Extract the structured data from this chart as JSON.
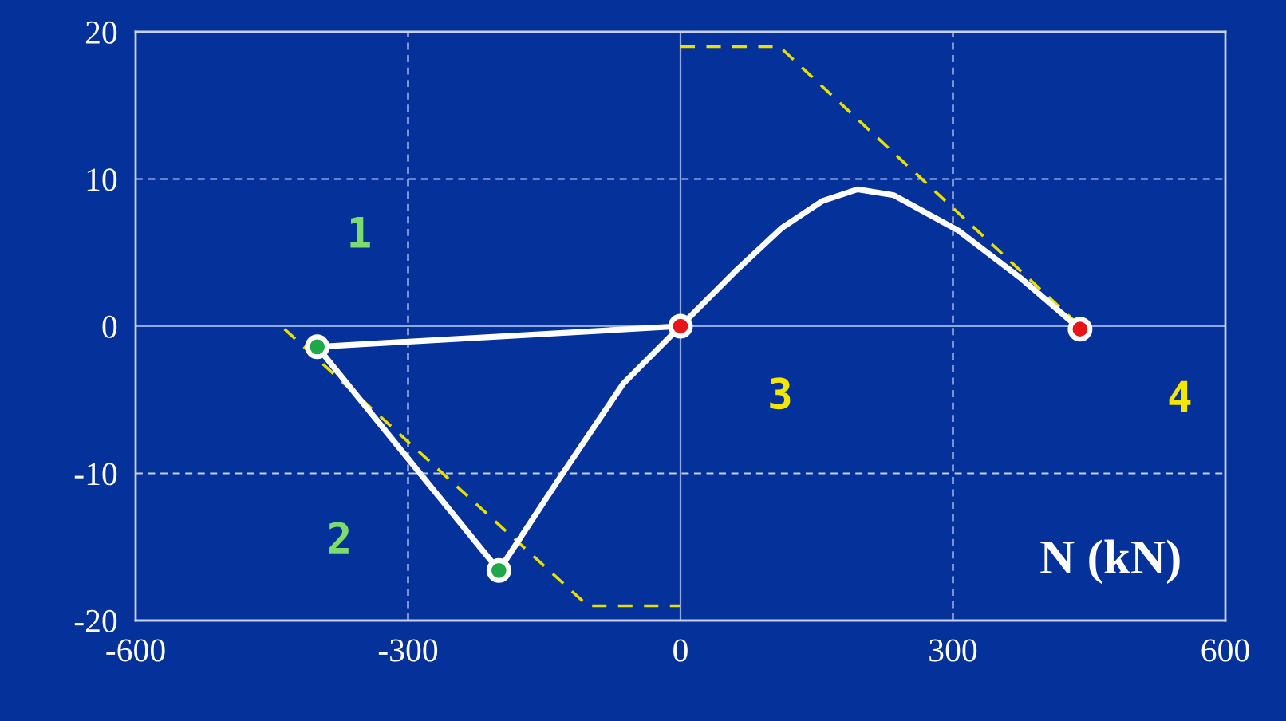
{
  "chart_data": {
    "type": "line",
    "xlabel": "N (kN)",
    "xlim": [
      -600,
      600
    ],
    "ylim": [
      -20,
      20
    ],
    "xticks": [
      -600,
      -300,
      0,
      300,
      600
    ],
    "yticks": [
      -20,
      -10,
      0,
      10,
      20
    ],
    "grid": true,
    "series": [
      {
        "color": "#e8e000",
        "line_style": "dashed",
        "x": [
          -436,
          -102,
          0
        ],
        "values": [
          -0.2,
          -19,
          -19
        ]
      },
      {
        "color": "#e8e000",
        "line_style": "dashed",
        "x": [
          0,
          109,
          440
        ],
        "values": [
          19,
          19,
          0
        ]
      },
      {
        "color": "#ffffff",
        "line_style": "solid",
        "x": [
          0,
          -400,
          -200,
          -134,
          -63,
          0,
          60,
          112,
          156,
          195,
          235,
          306,
          376,
          440
        ],
        "values": [
          0,
          -1.4,
          -16.6,
          -10.4,
          -3.9,
          0,
          3.7,
          6.7,
          8.5,
          9.3,
          8.9,
          6.5,
          3.2,
          -0.2
        ]
      },
      {
        "type": "scatter",
        "color": "#1fa84a",
        "marker": "circle",
        "x": [
          -400,
          -200
        ],
        "values": [
          -1.4,
          -16.6
        ]
      },
      {
        "type": "scatter",
        "color": "#e8141a",
        "marker": "circle",
        "x": [
          0,
          440
        ],
        "values": [
          0,
          -0.2
        ]
      }
    ],
    "annotations": [
      "1",
      "2",
      "3",
      "4"
    ]
  }
}
